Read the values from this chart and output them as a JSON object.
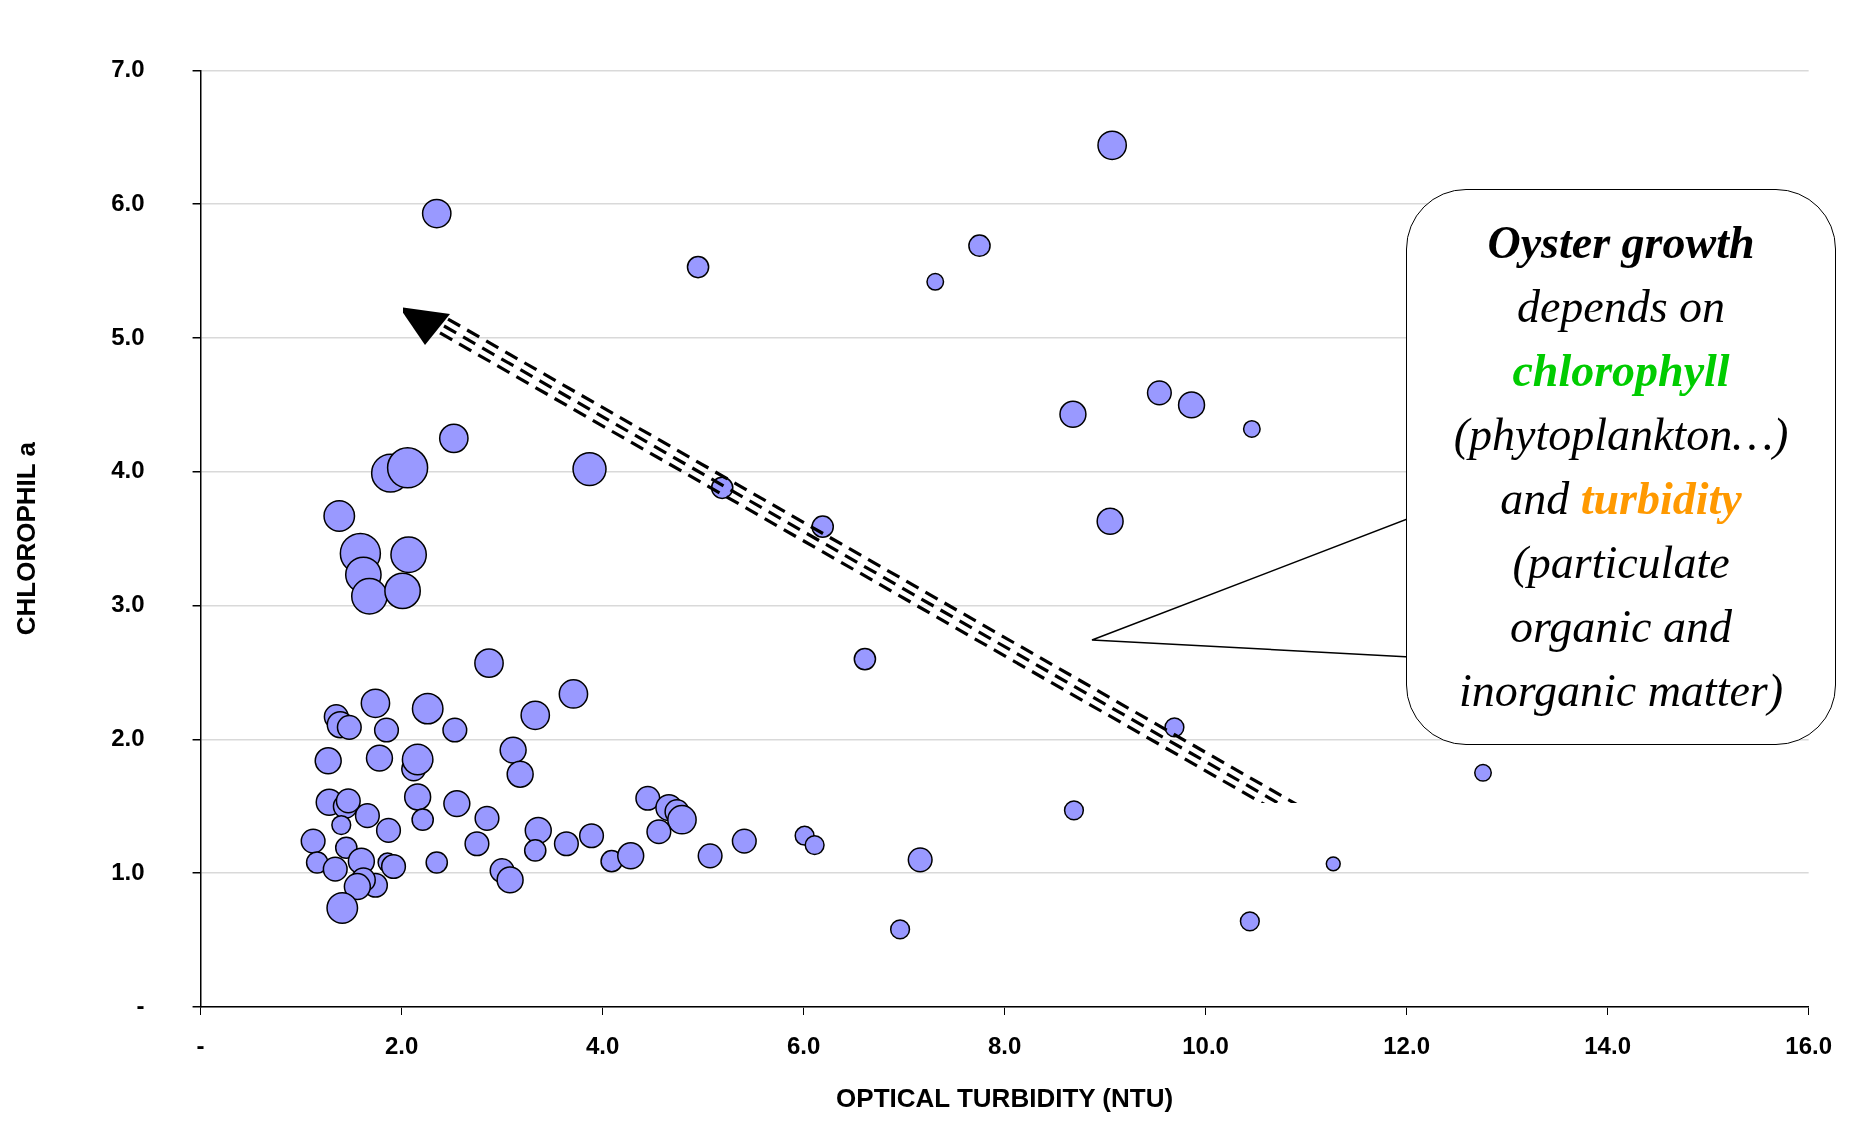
{
  "chart_data": {
    "type": "bubble",
    "xlabel": "OPTICAL TURBIDITY (NTU)",
    "ylabel": "CHLOROPHIL a",
    "xlim": [
      0,
      16
    ],
    "ylim": [
      0,
      7
    ],
    "xticks": [
      {
        "value": 0,
        "label": "-"
      },
      {
        "value": 2,
        "label": "2.0"
      },
      {
        "value": 4,
        "label": "4.0"
      },
      {
        "value": 6,
        "label": "6.0"
      },
      {
        "value": 8,
        "label": "8.0"
      },
      {
        "value": 10,
        "label": "10.0"
      },
      {
        "value": 12,
        "label": "12.0"
      },
      {
        "value": 14,
        "label": "14.0"
      },
      {
        "value": 16,
        "label": "16.0"
      }
    ],
    "yticks": [
      {
        "value": 0,
        "label": "-"
      },
      {
        "value": 1,
        "label": "1.0"
      },
      {
        "value": 2,
        "label": "2.0"
      },
      {
        "value": 3,
        "label": "3.0"
      },
      {
        "value": 4,
        "label": "4.0"
      },
      {
        "value": 5,
        "label": "5.0"
      },
      {
        "value": 6,
        "label": "6.0"
      },
      {
        "value": 7,
        "label": "7.0"
      }
    ],
    "grid": "y",
    "annotations": [
      "Oyster growth",
      "depends on",
      "chlorophyll",
      "(phytoplankton…)",
      "and",
      "turbidity",
      "(particulate organic and inorganic matter)"
    ],
    "series": [
      {
        "color": "#9999ff",
        "x": [
          2.35,
          4.95,
          7.75,
          7.31,
          9.07,
          2.52,
          1.89,
          2.06,
          3.87,
          5.19,
          1.38,
          1.59,
          1.62,
          1.68,
          2.01,
          2.07,
          6.19,
          8.68,
          9.54,
          9.86,
          10.46,
          9.05,
          2.87,
          6.61,
          3.71,
          1.74,
          2.26,
          3.33,
          1.35,
          1.39,
          1.48,
          1.85,
          2.53,
          9.69,
          3.11,
          1.27,
          1.78,
          2.12,
          2.16,
          3.18,
          12.76,
          1.28,
          1.44,
          1.47,
          2.16,
          2.55,
          4.45,
          4.66,
          4.74,
          4.79,
          4.56,
          1.66,
          1.4,
          2.21,
          2.85,
          1.87,
          3.36,
          3.89,
          3.64,
          3.33,
          2.75,
          1.12,
          1.45,
          1.16,
          1.34,
          1.6,
          1.86,
          1.92,
          1.74,
          1.62,
          1.56,
          1.41,
          2.35,
          3.0,
          3.08,
          4.09,
          4.28,
          5.07,
          5.41,
          6.01,
          6.11,
          7.16,
          6.96,
          8.69,
          10.44,
          11.27
        ],
        "values": [
          5.93,
          5.53,
          5.69,
          5.42,
          6.44,
          4.25,
          3.99,
          4.03,
          4.02,
          3.88,
          3.67,
          3.39,
          3.23,
          3.07,
          3.11,
          3.38,
          3.59,
          4.43,
          4.59,
          4.5,
          4.32,
          3.63,
          2.57,
          2.6,
          2.34,
          2.27,
          2.23,
          2.18,
          2.17,
          2.11,
          2.09,
          2.07,
          2.07,
          2.09,
          1.92,
          1.84,
          1.86,
          1.78,
          1.85,
          1.74,
          1.75,
          1.53,
          1.5,
          1.54,
          1.57,
          1.52,
          1.56,
          1.49,
          1.46,
          1.4,
          1.31,
          1.43,
          1.36,
          1.4,
          1.41,
          1.32,
          1.32,
          1.28,
          1.22,
          1.17,
          1.22,
          1.24,
          1.19,
          1.08,
          1.03,
          1.09,
          1.08,
          1.05,
          0.91,
          0.95,
          0.9,
          0.74,
          1.08,
          1.02,
          0.95,
          1.09,
          1.13,
          1.13,
          1.24,
          1.28,
          1.21,
          1.1,
          0.58,
          1.47,
          0.64,
          1.07
        ],
        "sizes": [
          0.5,
          0.28,
          0.28,
          0.17,
          0.5,
          0.5,
          0.89,
          1,
          0.68,
          0.28,
          0.58,
          1,
          0.78,
          0.78,
          0.78,
          0.78,
          0.28,
          0.42,
          0.35,
          0.42,
          0.17,
          0.42,
          0.5,
          0.28,
          0.5,
          0.5,
          0.58,
          0.5,
          0.35,
          0.42,
          0.35,
          0.35,
          0.35,
          0.22,
          0.42,
          0.42,
          0.42,
          0.35,
          0.58,
          0.42,
          0.17,
          0.42,
          0.35,
          0.35,
          0.42,
          0.42,
          0.35,
          0.42,
          0.35,
          0.5,
          0.35,
          0.35,
          0.22,
          0.28,
          0.35,
          0.35,
          0.42,
          0.35,
          0.35,
          0.28,
          0.35,
          0.35,
          0.28,
          0.28,
          0.35,
          0.42,
          0.22,
          0.35,
          0.35,
          0.35,
          0.42,
          0.58,
          0.28,
          0.35,
          0.42,
          0.28,
          0.42,
          0.35,
          0.35,
          0.22,
          0.22,
          0.35,
          0.22,
          0.22,
          0.22,
          0.12
        ]
      }
    ]
  }
}
